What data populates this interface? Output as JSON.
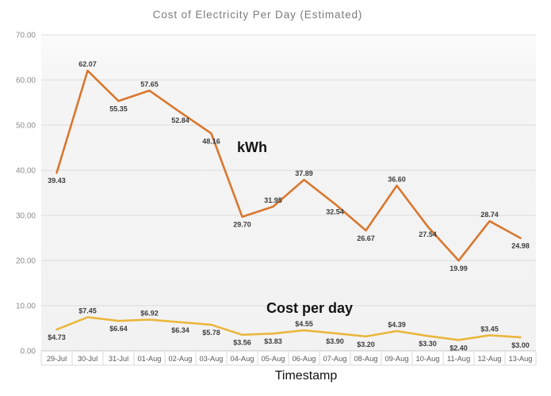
{
  "chart_data": {
    "type": "line",
    "title": "Cost of Electricity Per Day (Estimated)",
    "xlabel": "Timestamp",
    "ylabel": "",
    "ylim": [
      0,
      70
    ],
    "ytick_labels": [
      "0.00",
      "10.00",
      "20.00",
      "30.00",
      "40.00",
      "50.00",
      "60.00",
      "70.00"
    ],
    "grid": true,
    "legend_position": "none (inline bold annotations next to each line)",
    "categories": [
      "29-Jul",
      "30-Jul",
      "31-Jul",
      "01-Aug",
      "02-Aug",
      "03-Aug",
      "04-Aug",
      "05-Aug",
      "06-Aug",
      "07-Aug",
      "08-Aug",
      "09-Aug",
      "10-Aug",
      "11-Aug",
      "12-Aug",
      "13-Aug"
    ],
    "series": [
      {
        "name": "kWh",
        "color": "#D9772E",
        "label_format": "number",
        "values": [
          39.43,
          62.07,
          55.35,
          57.65,
          52.84,
          48.16,
          29.7,
          31.95,
          37.89,
          32.54,
          26.67,
          36.6,
          27.54,
          19.99,
          28.74,
          24.98
        ],
        "label_positions": [
          "below",
          "above",
          "below",
          "above",
          "below",
          "below",
          "below",
          "above",
          "above",
          "below",
          "below",
          "above",
          "below",
          "below",
          "above",
          "below"
        ]
      },
      {
        "name": "Cost per day",
        "color": "#EAB63C",
        "label_format": "currency",
        "values": [
          4.73,
          7.45,
          6.64,
          6.92,
          6.34,
          5.78,
          3.56,
          3.83,
          4.55,
          3.9,
          3.2,
          4.39,
          3.3,
          2.4,
          3.45,
          3.0
        ],
        "label_positions": [
          "below",
          "above",
          "below",
          "above",
          "below",
          "below",
          "below",
          "below",
          "above",
          "below",
          "below",
          "above",
          "below",
          "below",
          "above",
          "below"
        ]
      }
    ],
    "colors": {
      "title_text": "#7b7b7b",
      "plot_background": "#f3f3f3",
      "gridline": "#dcdcdc",
      "axis_line": "#c8c8c8",
      "ytick_text": "#8c8c8c",
      "xtick_text": "#595959",
      "data_label_text": "#3d3d3d"
    }
  }
}
